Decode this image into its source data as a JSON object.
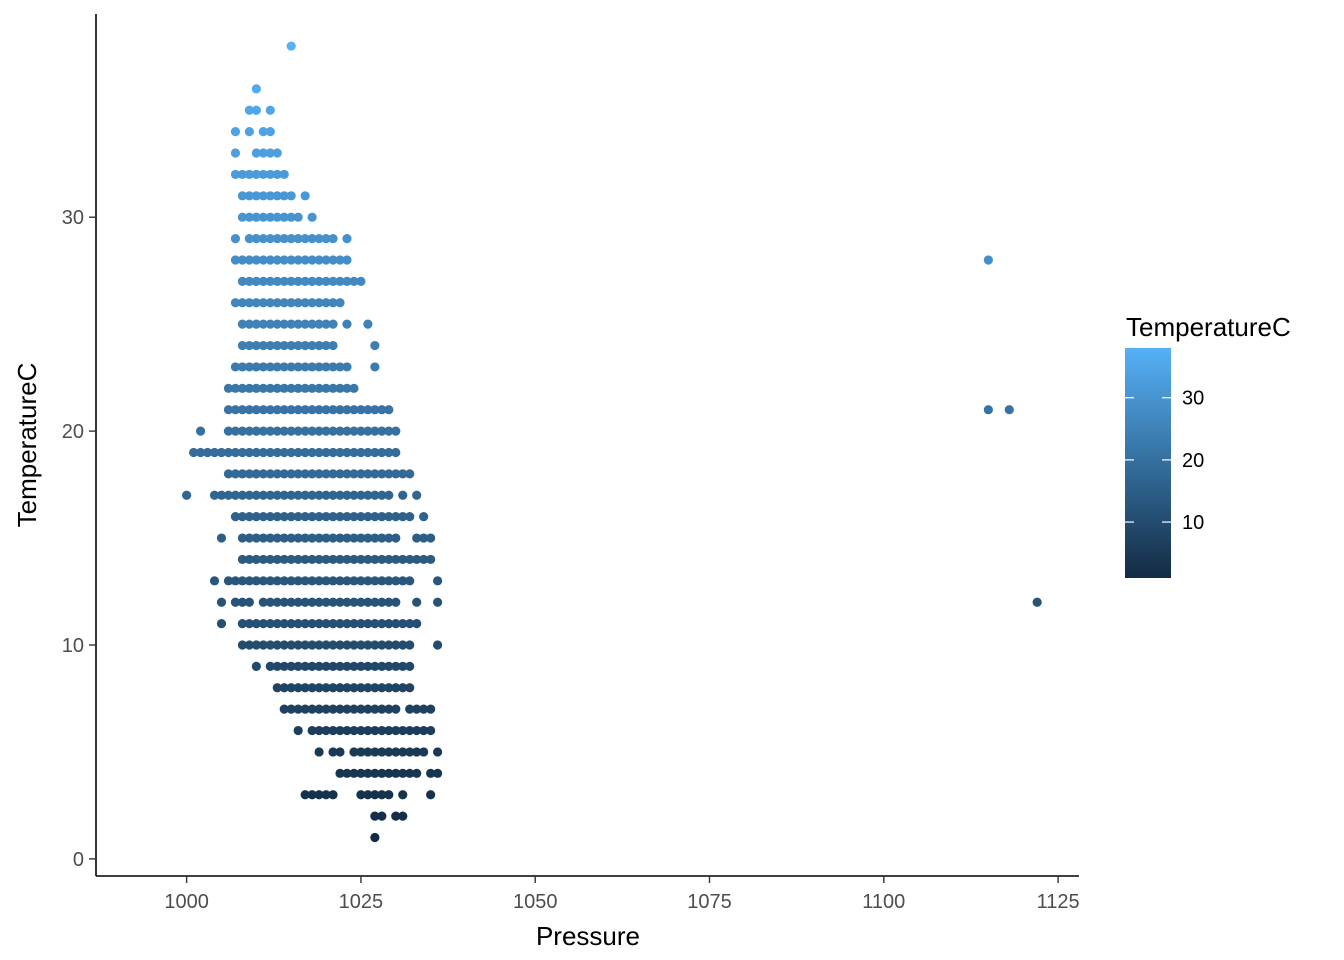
{
  "chart_data": {
    "type": "scatter",
    "xlabel": "Pressure",
    "ylabel": "TemperatureC",
    "xlim": [
      987,
      1128
    ],
    "ylim": [
      -0.8,
      39.5
    ],
    "x_ticks": [
      1000,
      1025,
      1050,
      1075,
      1100,
      1125
    ],
    "y_ticks": [
      0,
      10,
      20,
      30
    ],
    "grid": false,
    "color_scale": {
      "title": "TemperatureC",
      "low_color": "#132b43",
      "high_color": "#56b1f7",
      "range": [
        1,
        38
      ],
      "ticks": [
        10,
        20,
        30
      ],
      "placement": "right"
    },
    "rows": [
      {
        "y": 38,
        "x_ranges": [
          [
            1015,
            1015
          ]
        ]
      },
      {
        "y": 36,
        "x_ranges": [
          [
            1010,
            1010
          ]
        ]
      },
      {
        "y": 35,
        "x_ranges": [
          [
            1009,
            1010
          ],
          [
            1012,
            1012
          ]
        ]
      },
      {
        "y": 34,
        "x_ranges": [
          [
            1007,
            1007
          ],
          [
            1009,
            1009
          ],
          [
            1011,
            1012
          ]
        ]
      },
      {
        "y": 33,
        "x_ranges": [
          [
            1007,
            1007
          ],
          [
            1010,
            1013
          ]
        ]
      },
      {
        "y": 32,
        "x_ranges": [
          [
            1007,
            1014
          ]
        ]
      },
      {
        "y": 31,
        "x_ranges": [
          [
            1008,
            1015
          ],
          [
            1017,
            1017
          ]
        ]
      },
      {
        "y": 30,
        "x_ranges": [
          [
            1008,
            1016
          ],
          [
            1018,
            1018
          ]
        ]
      },
      {
        "y": 29,
        "x_ranges": [
          [
            1007,
            1007
          ],
          [
            1009,
            1021
          ],
          [
            1023,
            1023
          ]
        ]
      },
      {
        "y": 28,
        "x_ranges": [
          [
            1007,
            1023
          ]
        ]
      },
      {
        "y": 27,
        "x_ranges": [
          [
            1008,
            1025
          ]
        ]
      },
      {
        "y": 26,
        "x_ranges": [
          [
            1007,
            1022
          ]
        ]
      },
      {
        "y": 25,
        "x_ranges": [
          [
            1008,
            1021
          ],
          [
            1023,
            1023
          ],
          [
            1026,
            1026
          ]
        ]
      },
      {
        "y": 24,
        "x_ranges": [
          [
            1008,
            1021
          ],
          [
            1027,
            1027
          ]
        ]
      },
      {
        "y": 23,
        "x_ranges": [
          [
            1007,
            1023
          ],
          [
            1027,
            1027
          ]
        ]
      },
      {
        "y": 22,
        "x_ranges": [
          [
            1006,
            1024
          ]
        ]
      },
      {
        "y": 21,
        "x_ranges": [
          [
            1006,
            1029
          ]
        ]
      },
      {
        "y": 20,
        "x_ranges": [
          [
            1002,
            1002
          ],
          [
            1006,
            1030
          ]
        ]
      },
      {
        "y": 19,
        "x_ranges": [
          [
            1001,
            1030
          ]
        ]
      },
      {
        "y": 18,
        "x_ranges": [
          [
            1006,
            1032
          ]
        ]
      },
      {
        "y": 17,
        "x_ranges": [
          [
            1000,
            1000
          ],
          [
            1004,
            1029
          ],
          [
            1031,
            1031
          ],
          [
            1033,
            1033
          ]
        ]
      },
      {
        "y": 16,
        "x_ranges": [
          [
            1007,
            1032
          ],
          [
            1034,
            1034
          ]
        ]
      },
      {
        "y": 15,
        "x_ranges": [
          [
            1005,
            1005
          ],
          [
            1008,
            1030
          ],
          [
            1033,
            1035
          ]
        ]
      },
      {
        "y": 14,
        "x_ranges": [
          [
            1008,
            1035
          ]
        ]
      },
      {
        "y": 13,
        "x_ranges": [
          [
            1004,
            1004
          ],
          [
            1006,
            1032
          ],
          [
            1036,
            1036
          ]
        ]
      },
      {
        "y": 12,
        "x_ranges": [
          [
            1005,
            1005
          ],
          [
            1007,
            1009
          ],
          [
            1011,
            1030
          ],
          [
            1033,
            1033
          ],
          [
            1036,
            1036
          ]
        ]
      },
      {
        "y": 11,
        "x_ranges": [
          [
            1005,
            1005
          ],
          [
            1008,
            1033
          ]
        ]
      },
      {
        "y": 10,
        "x_ranges": [
          [
            1008,
            1032
          ],
          [
            1036,
            1036
          ]
        ]
      },
      {
        "y": 9,
        "x_ranges": [
          [
            1010,
            1010
          ],
          [
            1012,
            1032
          ]
        ]
      },
      {
        "y": 8,
        "x_ranges": [
          [
            1013,
            1032
          ]
        ]
      },
      {
        "y": 7,
        "x_ranges": [
          [
            1014,
            1030
          ],
          [
            1032,
            1035
          ]
        ]
      },
      {
        "y": 6,
        "x_ranges": [
          [
            1016,
            1016
          ],
          [
            1018,
            1035
          ]
        ]
      },
      {
        "y": 5,
        "x_ranges": [
          [
            1019,
            1019
          ],
          [
            1021,
            1022
          ],
          [
            1024,
            1034
          ],
          [
            1036,
            1036
          ]
        ]
      },
      {
        "y": 4,
        "x_ranges": [
          [
            1022,
            1033
          ],
          [
            1035,
            1036
          ]
        ]
      },
      {
        "y": 3,
        "x_ranges": [
          [
            1017,
            1021
          ],
          [
            1025,
            1029
          ],
          [
            1031,
            1031
          ],
          [
            1035,
            1035
          ]
        ]
      },
      {
        "y": 2,
        "x_ranges": [
          [
            1027,
            1028
          ],
          [
            1030,
            1031
          ]
        ]
      },
      {
        "y": 1,
        "x_ranges": [
          [
            1027,
            1027
          ]
        ]
      }
    ],
    "outliers": [
      {
        "x": 1115,
        "y": 28
      },
      {
        "x": 1115,
        "y": 21
      },
      {
        "x": 1118,
        "y": 21
      },
      {
        "x": 1122,
        "y": 12
      }
    ]
  }
}
